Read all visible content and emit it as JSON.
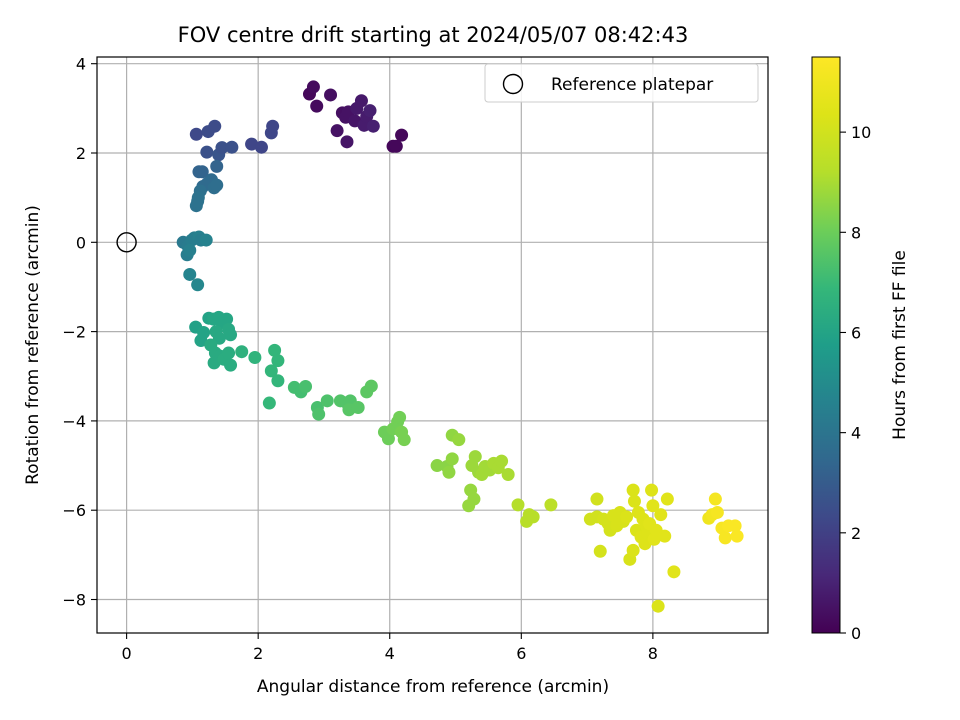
{
  "chart_data": {
    "type": "scatter",
    "title": "FOV centre drift starting at 2024/05/07 08:42:43",
    "xlabel": "Angular distance from reference (arcmin)",
    "ylabel": "Rotation from reference (arcmin)",
    "xlim": [
      -0.45,
      9.75
    ],
    "ylim": [
      -8.75,
      4.15
    ],
    "x_ticks": [
      0,
      2,
      4,
      6,
      8
    ],
    "y_ticks": [
      -8,
      -6,
      -4,
      -2,
      0,
      2,
      4
    ],
    "grid": true,
    "legend": {
      "placement": "upper right",
      "entries": [
        "Reference platepar"
      ]
    },
    "reference_point": {
      "label": "Reference platepar",
      "x": 0,
      "y": 0
    },
    "colorbar": {
      "label": "Hours from first FF file",
      "colormap": "viridis",
      "range": [
        0,
        11.5
      ],
      "ticks": [
        0,
        2,
        4,
        6,
        8,
        10
      ]
    },
    "points": [
      {
        "x": 2.78,
        "y": 3.32,
        "t": 0.2
      },
      {
        "x": 2.84,
        "y": 3.48,
        "t": 0.3
      },
      {
        "x": 2.89,
        "y": 3.05,
        "t": 0.3
      },
      {
        "x": 3.1,
        "y": 3.3,
        "t": 0.4
      },
      {
        "x": 3.28,
        "y": 2.9,
        "t": 0.4
      },
      {
        "x": 3.33,
        "y": 2.8,
        "t": 0.5
      },
      {
        "x": 3.37,
        "y": 2.92,
        "t": 0.5
      },
      {
        "x": 3.2,
        "y": 2.5,
        "t": 0.5
      },
      {
        "x": 3.35,
        "y": 2.25,
        "t": 0.6
      },
      {
        "x": 3.47,
        "y": 2.72,
        "t": 0.6
      },
      {
        "x": 3.5,
        "y": 3.0,
        "t": 0.7
      },
      {
        "x": 3.57,
        "y": 3.17,
        "t": 0.7
      },
      {
        "x": 3.61,
        "y": 2.62,
        "t": 0.8
      },
      {
        "x": 3.65,
        "y": 2.82,
        "t": 0.8
      },
      {
        "x": 3.7,
        "y": 2.95,
        "t": 0.9
      },
      {
        "x": 3.75,
        "y": 2.6,
        "t": 0.9
      },
      {
        "x": 4.05,
        "y": 2.15,
        "t": 0.2
      },
      {
        "x": 4.1,
        "y": 2.15,
        "t": 0.2
      },
      {
        "x": 4.18,
        "y": 2.4,
        "t": 0.2
      },
      {
        "x": 1.06,
        "y": 2.42,
        "t": 2.3
      },
      {
        "x": 1.24,
        "y": 2.48,
        "t": 2.4
      },
      {
        "x": 1.34,
        "y": 2.6,
        "t": 2.4
      },
      {
        "x": 1.22,
        "y": 2.02,
        "t": 2.6
      },
      {
        "x": 1.4,
        "y": 1.96,
        "t": 2.7
      },
      {
        "x": 1.45,
        "y": 2.12,
        "t": 2.6
      },
      {
        "x": 1.6,
        "y": 2.13,
        "t": 2.6
      },
      {
        "x": 1.9,
        "y": 2.2,
        "t": 2.2
      },
      {
        "x": 2.05,
        "y": 2.13,
        "t": 2.2
      },
      {
        "x": 2.2,
        "y": 2.45,
        "t": 2.2
      },
      {
        "x": 2.22,
        "y": 2.6,
        "t": 2.2
      },
      {
        "x": 1.1,
        "y": 1.58,
        "t": 3.3
      },
      {
        "x": 1.15,
        "y": 1.58,
        "t": 3.3
      },
      {
        "x": 1.37,
        "y": 1.7,
        "t": 3.3
      },
      {
        "x": 1.16,
        "y": 1.25,
        "t": 3.6
      },
      {
        "x": 1.23,
        "y": 1.32,
        "t": 3.6
      },
      {
        "x": 1.29,
        "y": 1.4,
        "t": 3.6
      },
      {
        "x": 1.33,
        "y": 1.22,
        "t": 3.7
      },
      {
        "x": 1.37,
        "y": 1.28,
        "t": 3.7
      },
      {
        "x": 1.12,
        "y": 1.15,
        "t": 3.8
      },
      {
        "x": 1.09,
        "y": 1.0,
        "t": 3.9
      },
      {
        "x": 1.06,
        "y": 0.82,
        "t": 3.9
      },
      {
        "x": 1.08,
        "y": 0.92,
        "t": 3.9
      },
      {
        "x": 0.86,
        "y": 0.0,
        "t": 4.2
      },
      {
        "x": 0.93,
        "y": -0.08,
        "t": 4.3
      },
      {
        "x": 0.99,
        "y": 0.05,
        "t": 4.4
      },
      {
        "x": 1.03,
        "y": 0.1,
        "t": 4.4
      },
      {
        "x": 1.1,
        "y": 0.12,
        "t": 4.5
      },
      {
        "x": 1.13,
        "y": 0.05,
        "t": 4.4
      },
      {
        "x": 0.92,
        "y": -0.28,
        "t": 4.4
      },
      {
        "x": 0.96,
        "y": -0.18,
        "t": 4.5
      },
      {
        "x": 1.21,
        "y": 0.05,
        "t": 4.6
      },
      {
        "x": 0.96,
        "y": -0.72,
        "t": 4.7
      },
      {
        "x": 1.08,
        "y": -0.95,
        "t": 4.8
      },
      {
        "x": 1.05,
        "y": -1.9,
        "t": 5.9
      },
      {
        "x": 1.17,
        "y": -2.02,
        "t": 6.0
      },
      {
        "x": 1.13,
        "y": -2.2,
        "t": 6.0
      },
      {
        "x": 1.25,
        "y": -1.7,
        "t": 6.0
      },
      {
        "x": 1.32,
        "y": -1.72,
        "t": 6.1
      },
      {
        "x": 1.4,
        "y": -1.68,
        "t": 6.1
      },
      {
        "x": 1.45,
        "y": -1.8,
        "t": 6.1
      },
      {
        "x": 1.52,
        "y": -1.72,
        "t": 6.1
      },
      {
        "x": 1.55,
        "y": -1.95,
        "t": 6.2
      },
      {
        "x": 1.58,
        "y": -2.07,
        "t": 6.2
      },
      {
        "x": 1.36,
        "y": -2.0,
        "t": 6.2
      },
      {
        "x": 1.41,
        "y": -2.15,
        "t": 6.2
      },
      {
        "x": 1.28,
        "y": -2.3,
        "t": 6.3
      },
      {
        "x": 1.35,
        "y": -2.48,
        "t": 6.3
      },
      {
        "x": 1.42,
        "y": -2.55,
        "t": 6.3
      },
      {
        "x": 1.33,
        "y": -2.7,
        "t": 6.3
      },
      {
        "x": 1.48,
        "y": -2.62,
        "t": 6.4
      },
      {
        "x": 1.55,
        "y": -2.48,
        "t": 6.4
      },
      {
        "x": 1.58,
        "y": -2.75,
        "t": 6.4
      },
      {
        "x": 1.75,
        "y": -2.45,
        "t": 6.6
      },
      {
        "x": 1.95,
        "y": -2.58,
        "t": 6.7
      },
      {
        "x": 2.2,
        "y": -2.88,
        "t": 6.8
      },
      {
        "x": 2.25,
        "y": -2.42,
        "t": 6.8
      },
      {
        "x": 2.3,
        "y": -2.65,
        "t": 6.8
      },
      {
        "x": 2.3,
        "y": -3.1,
        "t": 6.8
      },
      {
        "x": 2.17,
        "y": -3.6,
        "t": 6.9
      },
      {
        "x": 2.55,
        "y": -3.25,
        "t": 7.2
      },
      {
        "x": 2.65,
        "y": -3.35,
        "t": 7.2
      },
      {
        "x": 2.72,
        "y": -3.23,
        "t": 7.3
      },
      {
        "x": 2.9,
        "y": -3.7,
        "t": 7.3
      },
      {
        "x": 2.92,
        "y": -3.85,
        "t": 7.4
      },
      {
        "x": 3.05,
        "y": -3.55,
        "t": 7.4
      },
      {
        "x": 3.25,
        "y": -3.55,
        "t": 7.5
      },
      {
        "x": 3.35,
        "y": -3.6,
        "t": 7.5
      },
      {
        "x": 3.4,
        "y": -3.55,
        "t": 7.5
      },
      {
        "x": 3.38,
        "y": -3.75,
        "t": 7.6
      },
      {
        "x": 3.52,
        "y": -3.7,
        "t": 7.6
      },
      {
        "x": 3.65,
        "y": -3.35,
        "t": 7.7
      },
      {
        "x": 3.72,
        "y": -3.22,
        "t": 7.7
      },
      {
        "x": 3.92,
        "y": -4.25,
        "t": 8.0
      },
      {
        "x": 3.98,
        "y": -4.4,
        "t": 8.0
      },
      {
        "x": 4.05,
        "y": -4.18,
        "t": 8.1
      },
      {
        "x": 4.12,
        "y": -4.02,
        "t": 8.1
      },
      {
        "x": 4.15,
        "y": -3.92,
        "t": 8.1
      },
      {
        "x": 4.18,
        "y": -4.25,
        "t": 8.2
      },
      {
        "x": 4.22,
        "y": -4.42,
        "t": 8.2
      },
      {
        "x": 4.72,
        "y": -5.0,
        "t": 8.5
      },
      {
        "x": 4.87,
        "y": -5.02,
        "t": 8.5
      },
      {
        "x": 4.9,
        "y": -5.15,
        "t": 8.6
      },
      {
        "x": 4.95,
        "y": -4.85,
        "t": 8.6
      },
      {
        "x": 4.95,
        "y": -4.32,
        "t": 8.6
      },
      {
        "x": 5.05,
        "y": -4.42,
        "t": 8.7
      },
      {
        "x": 5.2,
        "y": -5.9,
        "t": 8.7
      },
      {
        "x": 5.23,
        "y": -5.55,
        "t": 8.7
      },
      {
        "x": 5.28,
        "y": -5.75,
        "t": 8.7
      },
      {
        "x": 5.25,
        "y": -5.0,
        "t": 8.8
      },
      {
        "x": 5.3,
        "y": -4.8,
        "t": 8.8
      },
      {
        "x": 5.35,
        "y": -5.15,
        "t": 8.8
      },
      {
        "x": 5.4,
        "y": -5.2,
        "t": 8.9
      },
      {
        "x": 5.45,
        "y": -5.02,
        "t": 8.9
      },
      {
        "x": 5.52,
        "y": -5.1,
        "t": 8.9
      },
      {
        "x": 5.58,
        "y": -4.95,
        "t": 9.0
      },
      {
        "x": 5.65,
        "y": -5.05,
        "t": 9.0
      },
      {
        "x": 5.7,
        "y": -4.9,
        "t": 9.0
      },
      {
        "x": 5.8,
        "y": -5.2,
        "t": 9.0
      },
      {
        "x": 5.95,
        "y": -5.88,
        "t": 9.2
      },
      {
        "x": 6.08,
        "y": -6.25,
        "t": 9.3
      },
      {
        "x": 6.12,
        "y": -6.1,
        "t": 9.3
      },
      {
        "x": 6.18,
        "y": -6.15,
        "t": 9.3
      },
      {
        "x": 6.45,
        "y": -5.88,
        "t": 9.4
      },
      {
        "x": 7.05,
        "y": -6.2,
        "t": 10.0
      },
      {
        "x": 7.15,
        "y": -6.15,
        "t": 10.0
      },
      {
        "x": 7.15,
        "y": -5.75,
        "t": 10.0
      },
      {
        "x": 7.2,
        "y": -6.92,
        "t": 10.1
      },
      {
        "x": 7.25,
        "y": -6.2,
        "t": 10.1
      },
      {
        "x": 7.32,
        "y": -6.3,
        "t": 10.1
      },
      {
        "x": 7.35,
        "y": -6.45,
        "t": 10.1
      },
      {
        "x": 7.4,
        "y": -6.12,
        "t": 10.2
      },
      {
        "x": 7.45,
        "y": -6.35,
        "t": 10.2
      },
      {
        "x": 7.5,
        "y": -6.05,
        "t": 10.2
      },
      {
        "x": 7.55,
        "y": -6.25,
        "t": 10.2
      },
      {
        "x": 7.6,
        "y": -6.15,
        "t": 10.3
      },
      {
        "x": 7.65,
        "y": -7.1,
        "t": 10.2
      },
      {
        "x": 7.7,
        "y": -6.9,
        "t": 10.3
      },
      {
        "x": 7.7,
        "y": -5.55,
        "t": 10.3
      },
      {
        "x": 7.72,
        "y": -5.8,
        "t": 10.3
      },
      {
        "x": 7.75,
        "y": -6.45,
        "t": 10.3
      },
      {
        "x": 7.78,
        "y": -6.05,
        "t": 10.4
      },
      {
        "x": 7.82,
        "y": -6.6,
        "t": 10.4
      },
      {
        "x": 7.85,
        "y": -6.2,
        "t": 10.4
      },
      {
        "x": 7.88,
        "y": -6.75,
        "t": 10.4
      },
      {
        "x": 7.9,
        "y": -6.35,
        "t": 10.4
      },
      {
        "x": 7.92,
        "y": -6.52,
        "t": 10.4
      },
      {
        "x": 7.95,
        "y": -6.3,
        "t": 10.5
      },
      {
        "x": 7.98,
        "y": -5.55,
        "t": 10.4
      },
      {
        "x": 8.0,
        "y": -5.9,
        "t": 10.5
      },
      {
        "x": 8.02,
        "y": -6.65,
        "t": 10.5
      },
      {
        "x": 8.05,
        "y": -6.45,
        "t": 10.5
      },
      {
        "x": 8.08,
        "y": -8.15,
        "t": 10.3
      },
      {
        "x": 8.12,
        "y": -6.1,
        "t": 10.5
      },
      {
        "x": 8.18,
        "y": -6.58,
        "t": 10.5
      },
      {
        "x": 8.22,
        "y": -5.75,
        "t": 10.5
      },
      {
        "x": 8.32,
        "y": -7.38,
        "t": 10.5
      },
      {
        "x": 8.85,
        "y": -6.18,
        "t": 11.0
      },
      {
        "x": 8.9,
        "y": -6.1,
        "t": 11.1
      },
      {
        "x": 8.95,
        "y": -5.75,
        "t": 11.2
      },
      {
        "x": 8.98,
        "y": -6.05,
        "t": 11.2
      },
      {
        "x": 9.05,
        "y": -6.4,
        "t": 11.3
      },
      {
        "x": 9.1,
        "y": -6.62,
        "t": 11.3
      },
      {
        "x": 9.15,
        "y": -6.35,
        "t": 11.4
      },
      {
        "x": 9.25,
        "y": -6.35,
        "t": 11.4
      },
      {
        "x": 9.28,
        "y": -6.58,
        "t": 11.4
      }
    ]
  }
}
